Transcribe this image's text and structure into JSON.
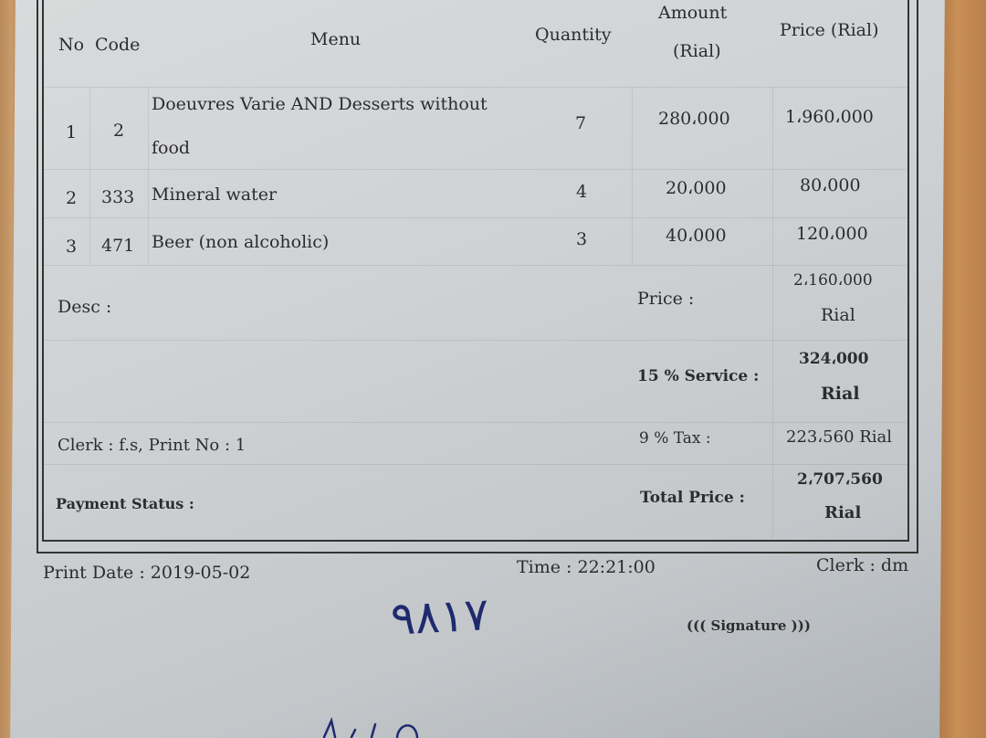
{
  "table": {
    "headers": {
      "no": "No",
      "code": "Code",
      "menu": "Menu",
      "quantity": "Quantity",
      "amount_l1": "Amount",
      "amount_l2": "(Rial)",
      "price": "Price (Rial)"
    },
    "rows": [
      {
        "no": "1",
        "code": "2",
        "menu_l1": "Doeuvres Varie AND Desserts without",
        "menu_l2": "food",
        "quantity": "7",
        "amount": "280،000",
        "price": "1،960،000"
      },
      {
        "no": "2",
        "code": "333",
        "menu": "Mineral water",
        "quantity": "4",
        "amount": "20،000",
        "price": "80،000"
      },
      {
        "no": "3",
        "code": "471",
        "menu": "Beer (non alcoholic)",
        "quantity": "3",
        "amount": "40،000",
        "price": "120،000"
      }
    ]
  },
  "summary": {
    "desc_label": "Desc :",
    "clerk_print": "Clerk : f.s, Print No : 1",
    "payment_status_label": "Payment Status :",
    "price_label": "Price :",
    "price_value": "2،160،000",
    "price_unit": "Rial",
    "service_label": "15 % Service :",
    "service_value": "324،000",
    "service_unit": "Rial",
    "tax_label": "9 % Tax :",
    "tax_value": "223،560 Rial",
    "total_label": "Total Price :",
    "total_value": "2،707،560",
    "total_unit": "Rial"
  },
  "footer": {
    "print_date": "Print Date : 2019-05-02",
    "time": "Time : 22:21:00",
    "clerk": "Clerk : dm",
    "signature": "((( Signature )))",
    "handwritten": "۹۸۱۷"
  },
  "colors": {
    "ink": "#2c2c2e",
    "pen": "#1f2a6e",
    "paper": "#d3d6d8",
    "wood": "#c08a55"
  }
}
